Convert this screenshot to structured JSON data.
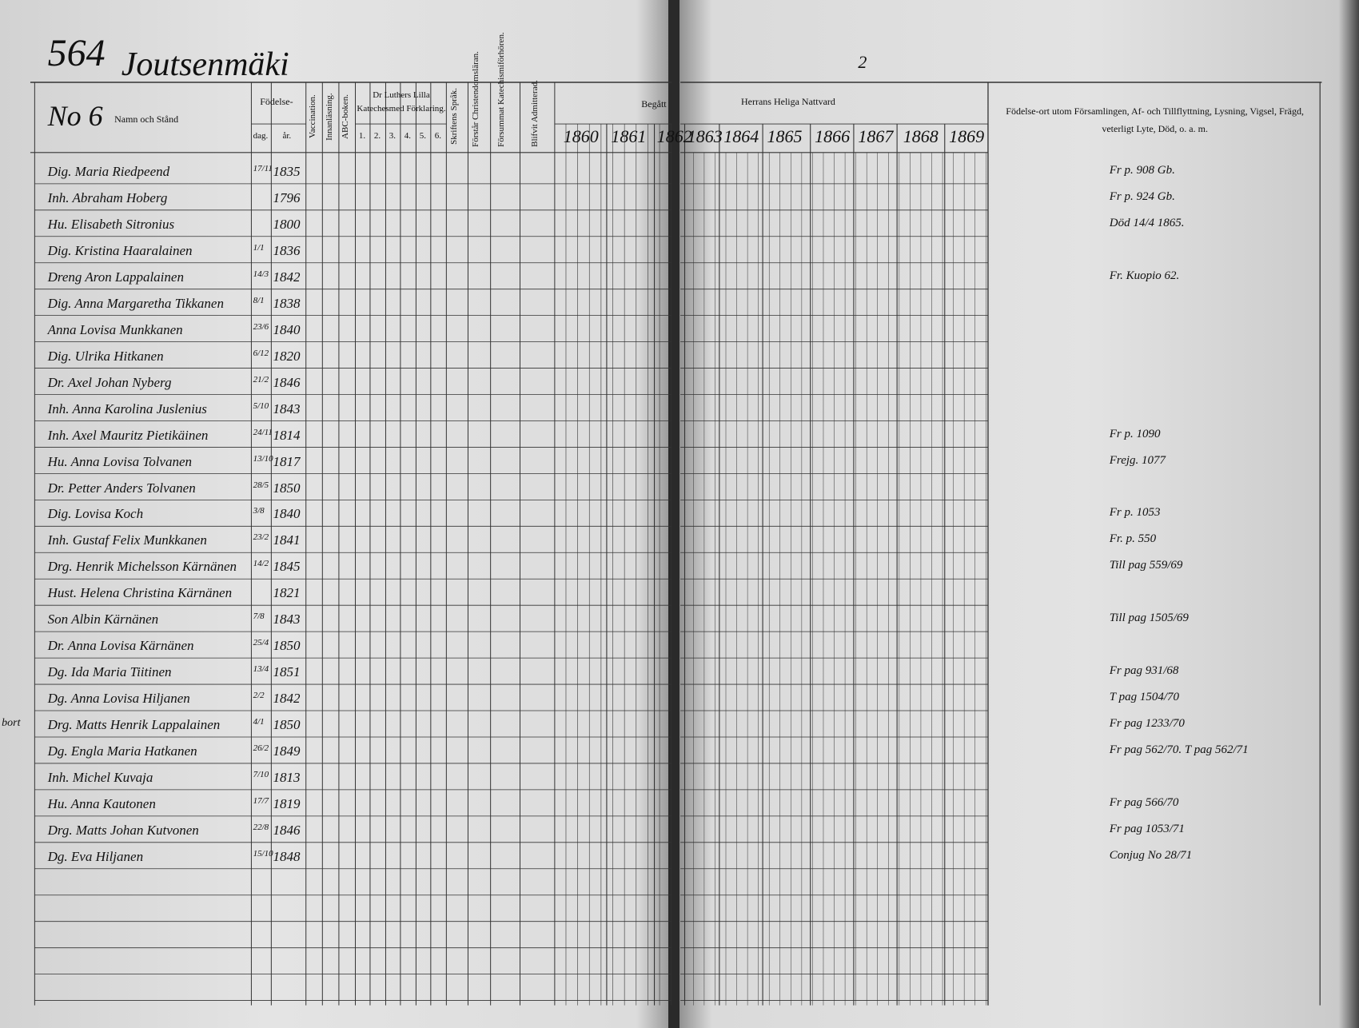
{
  "header": {
    "page_number": "564",
    "parish": "Joutsenmäki",
    "right_page_number": "2"
  },
  "left_columns": {
    "number": "No 6",
    "name": "Namn och Stånd",
    "birth": "Födelse-",
    "day": "dag.",
    "year": "år.",
    "vaccination": "Vaccination.",
    "reading": "Innanläsning.",
    "abc": "ABC-boken.",
    "luther": "Dr Luthers Lilla Katechesmed Förklaring.",
    "luther_parts": [
      "1.",
      "2.",
      "3.",
      "4.",
      "5.",
      "6."
    ],
    "scripture": "Skriftens Språk.",
    "christendom": "Förstår Christendomsläran.",
    "missed": "Försummat Katechismiförhören.",
    "admitted": "Blifvit Admitterad."
  },
  "communion": {
    "subtitle": "Begått",
    "title": "Herrans Heliga Nattvard",
    "years": [
      "1860",
      "1861",
      "1862",
      "1863",
      "1864",
      "1865",
      "1866",
      "1867",
      "1868",
      "1869"
    ]
  },
  "remarks_header": "Födelse-ort utom Församlingen, Af- och Tillflyttning, Lysning, Vigsel, Frägd, veterligt Lyte, Död, o. a. m.",
  "rows": [
    {
      "name": "Dig. Maria Riedpeend",
      "birth_day": "17/11",
      "birth_year": "1835",
      "note": "Fr p. 908 Gb."
    },
    {
      "name": "Inh. Abraham Hoberg",
      "birth_year": "1796",
      "note": "Fr p. 924 Gb."
    },
    {
      "name": "Hu. Elisabeth Sitronius",
      "birth_year": "1800",
      "note": "Död 14/4 1865."
    },
    {
      "name": "Dig. Kristina Haaralainen",
      "birth_day": "1/1",
      "birth_year": "1836"
    },
    {
      "name": "Dreng Aron Lappalainen",
      "birth_day": "14/3",
      "birth_year": "1842",
      "note": "Fr. Kuopio 62."
    },
    {
      "name": "Dig. Anna Margaretha Tikkanen",
      "birth_day": "8/1",
      "birth_year": "1838"
    },
    {
      "name": "Anna Lovisa Munkkanen",
      "birth_day": "23/6",
      "birth_year": "1840"
    },
    {
      "name": "Dig. Ulrika Hitkanen",
      "birth_day": "6/12",
      "birth_year": "1820"
    },
    {
      "name": "Dr. Axel Johan Nyberg",
      "birth_day": "21/2",
      "birth_year": "1846"
    },
    {
      "name": "Inh. Anna Karolina Juslenius",
      "birth_day": "5/10",
      "birth_year": "1843"
    },
    {
      "name": "Inh. Axel Mauritz Pietikäinen",
      "birth_day": "24/11",
      "birth_year": "1814",
      "note": "Fr p. 1090"
    },
    {
      "name": "Hu. Anna Lovisa Tolvanen",
      "birth_day": "13/10",
      "birth_year": "1817",
      "note": "Frejg. 1077"
    },
    {
      "name": "Dr. Petter Anders Tolvanen",
      "birth_day": "28/5",
      "birth_year": "1850"
    },
    {
      "name": "Dig. Lovisa Koch",
      "birth_day": "3/8",
      "birth_year": "1840",
      "note": "Fr p. 1053"
    },
    {
      "name": "Inh. Gustaf Felix Munkkanen",
      "birth_day": "23/2",
      "birth_year": "1841",
      "note": "Fr. p. 550"
    },
    {
      "name": "Drg. Henrik Michelsson Kärnänen",
      "birth_day": "14/2",
      "birth_year": "1845",
      "note": "Till pag 559/69"
    },
    {
      "name": "Hust. Helena Christina Kärnänen",
      "birth_year": "1821"
    },
    {
      "name": "Son Albin Kärnänen",
      "birth_day": "7/8",
      "birth_year": "1843",
      "note": "Till pag 1505/69"
    },
    {
      "name": "Dr. Anna Lovisa Kärnänen",
      "birth_day": "25/4",
      "birth_year": "1850"
    },
    {
      "name": "Dg. Ida Maria Tiitinen",
      "birth_day": "13/4",
      "birth_year": "1851",
      "note": "Fr pag 931/68"
    },
    {
      "name": "Dg. Anna Lovisa Hiljanen",
      "birth_day": "2/2",
      "birth_year": "1842",
      "note": "T pag 1504/70"
    },
    {
      "name": "Drg. Matts Henrik Lappalainen",
      "birth_day": "4/1",
      "birth_year": "1850",
      "note": "Fr pag 1233/70",
      "margin": "bort"
    },
    {
      "name": "Dg. Engla Maria Hatkanen",
      "birth_day": "26/2",
      "birth_year": "1849",
      "note": "Fr pag 562/70. T pag 562/71"
    },
    {
      "name": "Inh. Michel Kuvaja",
      "birth_day": "7/10",
      "birth_year": "1813"
    },
    {
      "name": "Hu. Anna Kautonen",
      "birth_day": "17/7",
      "birth_year": "1819",
      "note": "Fr pag 566/70"
    },
    {
      "name": "Drg. Matts Johan Kutvonen",
      "birth_day": "22/8",
      "birth_year": "1846",
      "note": "Fr pag 1053/71"
    },
    {
      "name": "Dg. Eva Hiljanen",
      "birth_day": "15/10",
      "birth_year": "1848",
      "note": "Conjug No 28/71"
    }
  ]
}
